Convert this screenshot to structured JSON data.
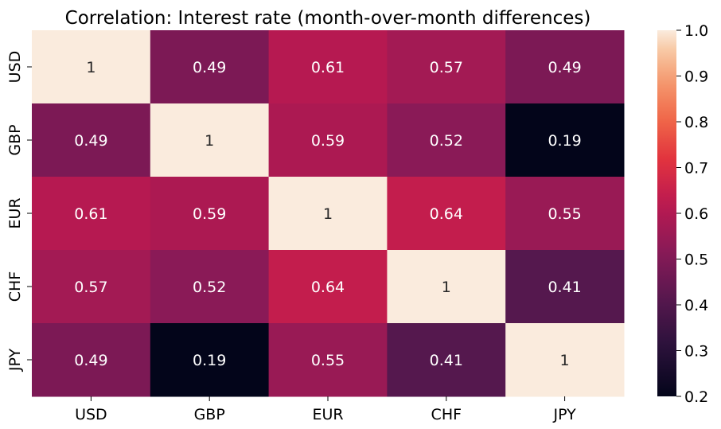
{
  "chart_data": {
    "type": "heatmap",
    "title": "Correlation: Interest rate (month-over-month differences)",
    "x_categories": [
      "USD",
      "GBP",
      "EUR",
      "CHF",
      "JPY"
    ],
    "y_categories": [
      "USD",
      "GBP",
      "EUR",
      "CHF",
      "JPY"
    ],
    "values": [
      [
        1,
        0.49,
        0.61,
        0.57,
        0.49
      ],
      [
        0.49,
        1,
        0.59,
        0.52,
        0.19
      ],
      [
        0.61,
        0.59,
        1,
        0.64,
        0.55
      ],
      [
        0.57,
        0.52,
        0.64,
        1,
        0.41
      ],
      [
        0.49,
        0.19,
        0.55,
        0.41,
        1
      ]
    ],
    "cell_labels": [
      [
        "1",
        "0.49",
        "0.61",
        "0.57",
        "0.49"
      ],
      [
        "0.49",
        "1",
        "0.59",
        "0.52",
        "0.19"
      ],
      [
        "0.61",
        "0.59",
        "1",
        "0.64",
        "0.55"
      ],
      [
        "0.57",
        "0.52",
        "0.64",
        "1",
        "0.41"
      ],
      [
        "0.49",
        "0.19",
        "0.55",
        "0.41",
        "1"
      ]
    ],
    "colorbar": {
      "range": [
        0.2,
        1.0
      ],
      "ticks": [
        "0.2",
        "0.3",
        "0.4",
        "0.5",
        "0.6",
        "0.7",
        "0.8",
        "0.9",
        "1.0"
      ],
      "colormap": "rocket"
    },
    "xlabel": "",
    "ylabel": ""
  }
}
